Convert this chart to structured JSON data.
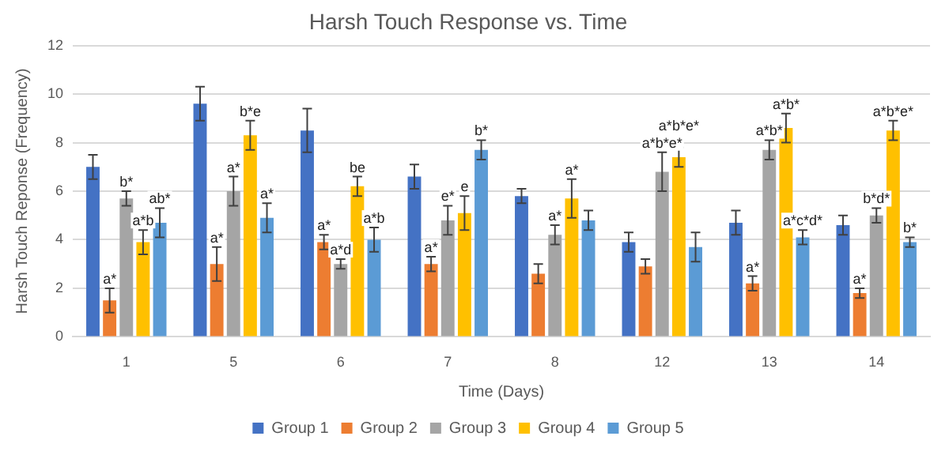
{
  "chart_data": {
    "type": "bar",
    "title": "Harsh Touch Response vs. Time",
    "xlabel": "Time (Days)",
    "ylabel": "Harsh Touch Reponse (Frequency)",
    "categories": [
      "1",
      "5",
      "6",
      "7",
      "8",
      "12",
      "13",
      "14"
    ],
    "series": [
      {
        "name": "Group 1",
        "color": "#4472c4",
        "values": [
          7.0,
          9.6,
          8.5,
          6.6,
          5.8,
          3.9,
          4.7,
          4.6
        ],
        "errors": [
          0.5,
          0.7,
          0.9,
          0.5,
          0.3,
          0.4,
          0.5,
          0.4
        ]
      },
      {
        "name": "Group 2",
        "color": "#ed7d31",
        "values": [
          1.5,
          3.0,
          3.9,
          3.0,
          2.6,
          2.9,
          2.2,
          1.8
        ],
        "errors": [
          0.5,
          0.7,
          0.3,
          0.3,
          0.4,
          0.3,
          0.3,
          0.2
        ],
        "value_labels": [
          "a*",
          "a*",
          "a*",
          "a*",
          null,
          null,
          "a*",
          "a*"
        ]
      },
      {
        "name": "Group 3",
        "color": "#a5a5a5",
        "values": [
          5.7,
          6.0,
          3.0,
          4.8,
          4.2,
          6.8,
          7.7,
          5.0
        ],
        "errors": [
          0.3,
          0.6,
          0.2,
          0.6,
          0.4,
          0.8,
          0.4,
          0.3
        ],
        "value_labels": [
          "b*",
          "a*",
          "a*d",
          "e*",
          "a*",
          "a*b*e*",
          "a*b*",
          "b*d*"
        ]
      },
      {
        "name": "Group 4",
        "color": "#ffc000",
        "values": [
          3.9,
          8.3,
          6.2,
          5.1,
          5.7,
          7.4,
          8.6,
          8.5
        ],
        "errors": [
          0.5,
          0.6,
          0.4,
          0.7,
          0.8,
          0.4,
          0.6,
          0.4
        ],
        "value_labels": [
          "a*b",
          "b*e",
          "be",
          "e",
          "a*",
          "a*b*e*",
          "a*b*",
          "a*b*e*"
        ]
      },
      {
        "name": "Group 5",
        "color": "#5b9bd5",
        "values": [
          4.7,
          4.9,
          4.0,
          7.7,
          4.8,
          3.7,
          4.1,
          3.9
        ],
        "errors": [
          0.6,
          0.6,
          0.5,
          0.4,
          0.4,
          0.6,
          0.3,
          0.2
        ],
        "value_labels": [
          "ab*",
          "a*",
          "a*b",
          "b*",
          null,
          null,
          "a*c*d*",
          "b*"
        ]
      }
    ],
    "ylim": [
      0,
      12
    ],
    "yticks": [
      0,
      2,
      4,
      6,
      8,
      10,
      12
    ],
    "grid": "y",
    "legend": "bottom"
  }
}
